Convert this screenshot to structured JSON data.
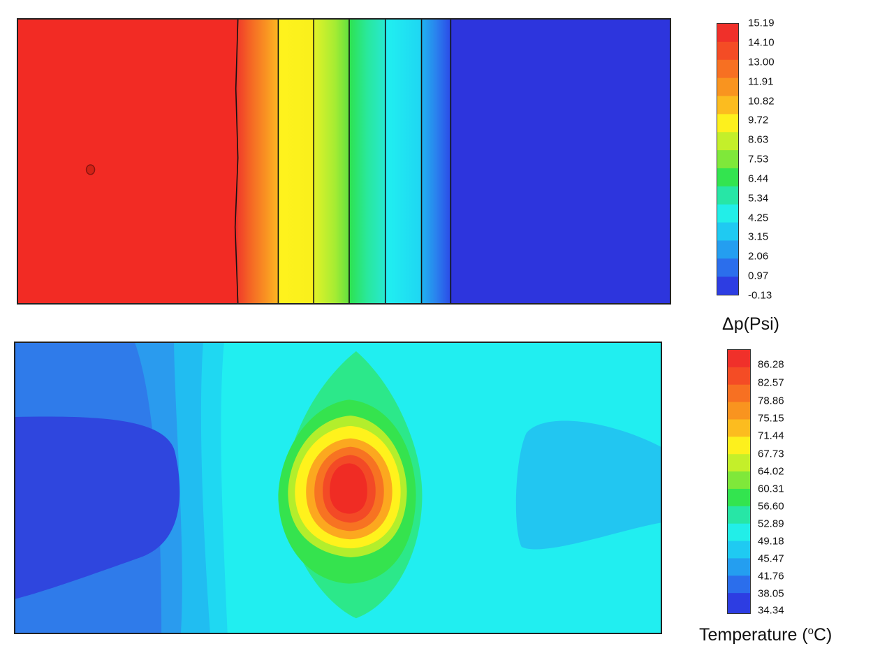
{
  "chart_data": [
    {
      "type": "heatmap",
      "title": "",
      "colorbar_label": "Δp(Psi)",
      "colorbar_ticks": [
        "15.19",
        "14.10",
        "13.00",
        "11.91",
        "10.82",
        "9.72",
        "8.63",
        "7.53",
        "6.44",
        "5.34",
        "4.25",
        "3.15",
        "2.06",
        "0.97",
        "-0.13"
      ],
      "range": [
        -0.13,
        15.19
      ],
      "field": "vertical pressure-drop bands, max on left, min on right",
      "profile_x_fraction": [
        0.0,
        0.33,
        0.4,
        0.46,
        0.51,
        0.57,
        0.62,
        0.67,
        1.0
      ],
      "profile_values": [
        15.19,
        15.19,
        11.91,
        10.82,
        8.63,
        5.34,
        3.15,
        -0.13,
        -0.13
      ],
      "colormap": "jet"
    },
    {
      "type": "heatmap",
      "title": "",
      "colorbar_label_prefix": "Temperature (",
      "colorbar_label_sup": "o",
      "colorbar_label_suffix": "C)",
      "colorbar_ticks": [
        "86.28",
        "82.57",
        "78.86",
        "75.15",
        "71.44",
        "67.73",
        "64.02",
        "60.31",
        "56.60",
        "52.89",
        "49.18",
        "45.47",
        "41.76",
        "38.05",
        "34.34"
      ],
      "range": [
        34.34,
        88.0
      ],
      "field": "central hot spot of about 86 C decreasing outward to about 50 C background, cooler zone near 38 C at the left edge and about 45 C at the right edge",
      "colormap": "jet"
    }
  ]
}
